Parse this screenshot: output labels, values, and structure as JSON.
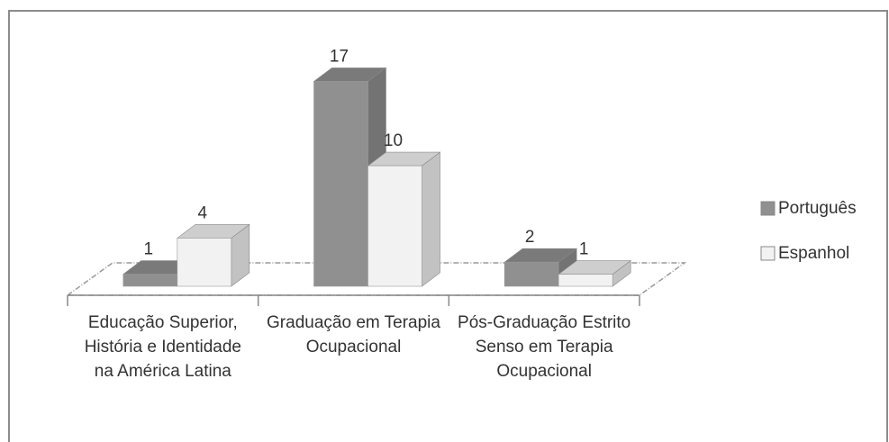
{
  "chart_data": {
    "type": "bar3d",
    "categories": [
      "Educação Superior, História e Identidade na América Latina",
      "Graduação em Terapia Ocupacional",
      "Pós-Graduação Estrito Senso em Terapia Ocupacional"
    ],
    "series": [
      {
        "name": "Português",
        "color": "#909090",
        "values": [
          1,
          17,
          2
        ]
      },
      {
        "name": "Espanhol",
        "color": "#f2f2f2",
        "values": [
          4,
          10,
          1
        ]
      }
    ],
    "ylim": [
      0,
      18
    ],
    "legend": "right"
  }
}
